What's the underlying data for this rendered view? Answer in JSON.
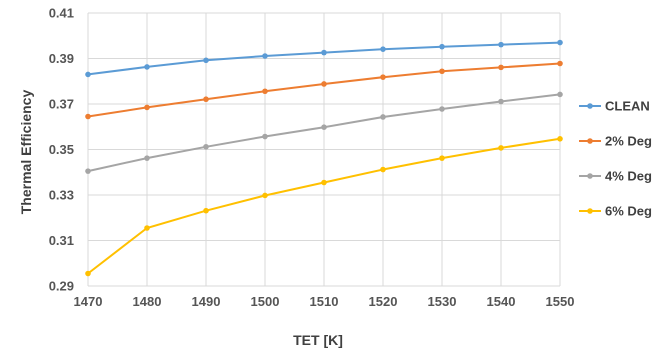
{
  "chart_data": {
    "type": "line",
    "xlabel": "TET [K]",
    "ylabel": "Thermal Efficiency",
    "x": [
      1470,
      1480,
      1490,
      1500,
      1510,
      1520,
      1530,
      1540,
      1550
    ],
    "xlim": [
      1470,
      1550
    ],
    "ylim": [
      0.29,
      0.41
    ],
    "x_ticks": [
      "1470",
      "1480",
      "1490",
      "1500",
      "1510",
      "1520",
      "1530",
      "1540",
      "1550"
    ],
    "y_ticks": [
      "0.29",
      "0.31",
      "0.33",
      "0.35",
      "0.37",
      "0.39",
      "0.41"
    ],
    "grid": true,
    "legend_position": "right",
    "series": [
      {
        "name": "CLEAN",
        "color": "#5b9bd5",
        "values": [
          0.383,
          0.3863,
          0.3892,
          0.3911,
          0.3926,
          0.3941,
          0.3952,
          0.3961,
          0.397
        ]
      },
      {
        "name": "2% Deg",
        "color": "#ed7d31",
        "values": [
          0.3645,
          0.3685,
          0.3721,
          0.3756,
          0.3788,
          0.3818,
          0.3844,
          0.3861,
          0.3878
        ]
      },
      {
        "name": "4% Deg",
        "color": "#a5a5a5",
        "values": [
          0.3405,
          0.3462,
          0.3512,
          0.3557,
          0.3598,
          0.3643,
          0.3678,
          0.3711,
          0.3742
        ]
      },
      {
        "name": "6% Deg",
        "color": "#ffc000",
        "values": [
          0.2955,
          0.3155,
          0.3231,
          0.3298,
          0.3355,
          0.3412,
          0.3462,
          0.3507,
          0.3547
        ]
      }
    ]
  }
}
